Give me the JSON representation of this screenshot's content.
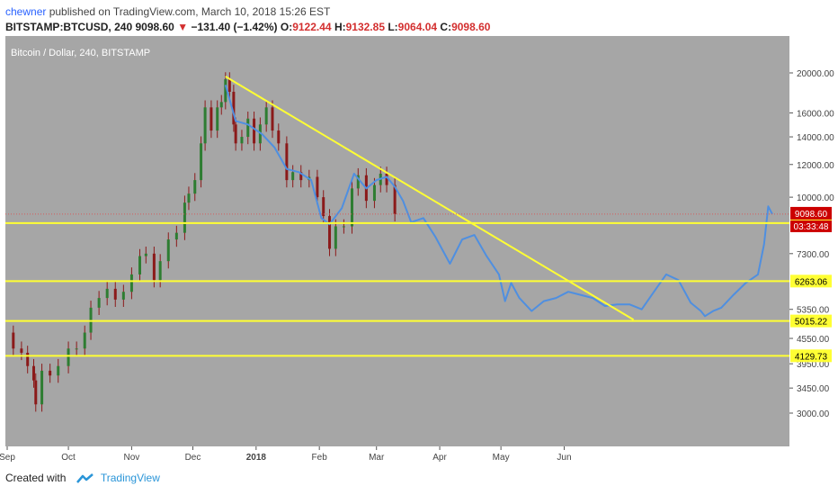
{
  "header": {
    "author": "chewner",
    "published_text": "published on TradingView.com, March 10, 2018 15:26 EST",
    "symbol": "BITSTAMP:BTCUSD, 240",
    "last": "9098.60",
    "change_arrow": "▼",
    "change": "−131.40 (−1.42%)",
    "open_label": "O:",
    "open": "9122.44",
    "high_label": "H:",
    "high": "9132.85",
    "low_label": "L:",
    "low": "9064.04",
    "close_label": "C:",
    "close": "9098.60"
  },
  "footer": {
    "created_with": "Created with",
    "brand": "TradingView",
    "logo_icon": "tradingview-logo-icon"
  },
  "colors": {
    "plot_bg": "#a6a6a6",
    "candles": "#8b1a1a",
    "line_series": "#4f8fe0",
    "horizontal_levels": "#ffff33",
    "trendline": "#ffff33",
    "price_tag": "#cc0000",
    "price_line": "#d55b5b",
    "axis_bg": "#ffffff"
  },
  "chart_data": {
    "type": "line",
    "title": "Bitcoin / Dollar, 240, BITSTAMP",
    "y_scale": "log",
    "ylim": [
      2700,
      22000
    ],
    "x": [
      "Sep",
      "Oct",
      "Nov",
      "Dec",
      "2018",
      "Feb",
      "Mar",
      "Apr",
      "May",
      "Jun"
    ],
    "y_ticks": [
      "20000.00",
      "16000.00",
      "14000.00",
      "12000.00",
      "10000.00",
      "7300.00",
      "5350.00",
      "4550.00",
      "3950.00",
      "3450.00",
      "3000.00"
    ],
    "grid": false,
    "series": [
      {
        "style": "candlestick",
        "x": [
          "2017-09-01",
          "2017-09-04",
          "2017-09-08",
          "2017-09-11",
          "2017-09-14",
          "2017-09-15",
          "2017-09-18",
          "2017-09-22",
          "2017-09-26",
          "2017-10-01",
          "2017-10-05",
          "2017-10-09",
          "2017-10-12",
          "2017-10-16",
          "2017-10-20",
          "2017-10-24",
          "2017-10-28",
          "2017-11-01",
          "2017-11-05",
          "2017-11-08",
          "2017-11-12",
          "2017-11-15",
          "2017-11-19",
          "2017-11-23",
          "2017-11-27",
          "2017-11-29",
          "2017-12-02",
          "2017-12-05",
          "2017-12-07",
          "2017-12-10",
          "2017-12-13",
          "2017-12-15",
          "2017-12-17",
          "2017-12-19",
          "2017-12-21",
          "2017-12-22",
          "2017-12-25",
          "2017-12-28",
          "2017-12-31",
          "2018-01-03",
          "2018-01-06",
          "2018-01-09",
          "2018-01-12",
          "2018-01-16",
          "2018-01-19",
          "2018-01-23",
          "2018-01-27",
          "2018-01-31",
          "2018-02-03",
          "2018-02-06",
          "2018-02-09",
          "2018-02-13",
          "2018-02-17",
          "2018-02-20",
          "2018-02-24",
          "2018-02-28",
          "2018-03-03",
          "2018-03-06",
          "2018-03-10"
        ],
        "values": [
          4700,
          4300,
          4200,
          3900,
          3600,
          3150,
          3800,
          3700,
          3900,
          4300,
          4300,
          4700,
          5400,
          5700,
          6000,
          5650,
          5900,
          6500,
          7200,
          7300,
          6300,
          7000,
          7900,
          8200,
          9700,
          10200,
          11000,
          13500,
          16500,
          14500,
          16500,
          17000,
          19300,
          18000,
          15000,
          13500,
          14000,
          15500,
          13500,
          15000,
          16500,
          14500,
          13500,
          11000,
          11500,
          11000,
          11200,
          10000,
          9000,
          7500,
          8500,
          8500,
          10500,
          11300,
          9800,
          10700,
          11400,
          10700,
          9100
        ]
      },
      {
        "style": "line",
        "x": [
          "2017-12-17",
          "2017-12-22",
          "2017-12-28",
          "2018-01-04",
          "2018-01-10",
          "2018-01-16",
          "2018-01-22",
          "2018-01-28",
          "2018-02-02",
          "2018-02-06",
          "2018-02-12",
          "2018-02-18",
          "2018-02-24",
          "2018-03-01",
          "2018-03-06",
          "2018-03-10",
          "2018-03-14",
          "2018-03-18",
          "2018-03-24",
          "2018-03-30",
          "2018-04-06",
          "2018-04-12",
          "2018-04-18",
          "2018-04-24",
          "2018-04-30",
          "2018-05-03",
          "2018-05-06",
          "2018-05-10",
          "2018-05-16",
          "2018-05-22",
          "2018-05-28",
          "2018-06-03",
          "2018-06-09",
          "2018-06-15",
          "2018-06-21",
          "2018-06-27",
          "2018-07-03",
          "2018-07-09",
          "2018-07-15",
          "2018-07-21",
          "2018-07-27",
          "2018-08-02",
          "2018-08-07",
          "2018-08-09",
          "2018-08-13",
          "2018-08-17",
          "2018-08-23",
          "2018-08-29",
          "2018-09-04",
          "2018-09-07",
          "2018-09-09",
          "2018-09-11"
        ],
        "values": [
          18700,
          15300,
          15000,
          14200,
          13200,
          11700,
          11500,
          11000,
          8900,
          8600,
          9400,
          11400,
          10500,
          11000,
          11200,
          10600,
          9800,
          8700,
          8900,
          8000,
          6900,
          7900,
          8100,
          7200,
          6500,
          5600,
          6200,
          5700,
          5300,
          5600,
          5700,
          5900,
          5800,
          5700,
          5450,
          5500,
          5500,
          5350,
          5900,
          6500,
          6300,
          5550,
          5300,
          5150,
          5300,
          5400,
          5800,
          6200,
          6500,
          7700,
          9500,
          9100
        ]
      }
    ],
    "horizontal_levels": [
      {
        "label": "5015.22",
        "value": 5015.22
      },
      {
        "label": "6263.06",
        "value": 6263.06
      },
      {
        "value": 8656.92,
        "label": "8656.92"
      },
      {
        "value": 4129.73,
        "label": "4129.73"
      }
    ],
    "trendline": {
      "from": {
        "x": "2017-12-17",
        "y": 19600
      },
      "to": {
        "x": "2018-07-05",
        "y": 5050
      }
    },
    "current_price": {
      "label": "9098.60",
      "value": 9098.6,
      "countdown": "03:33:48"
    }
  }
}
